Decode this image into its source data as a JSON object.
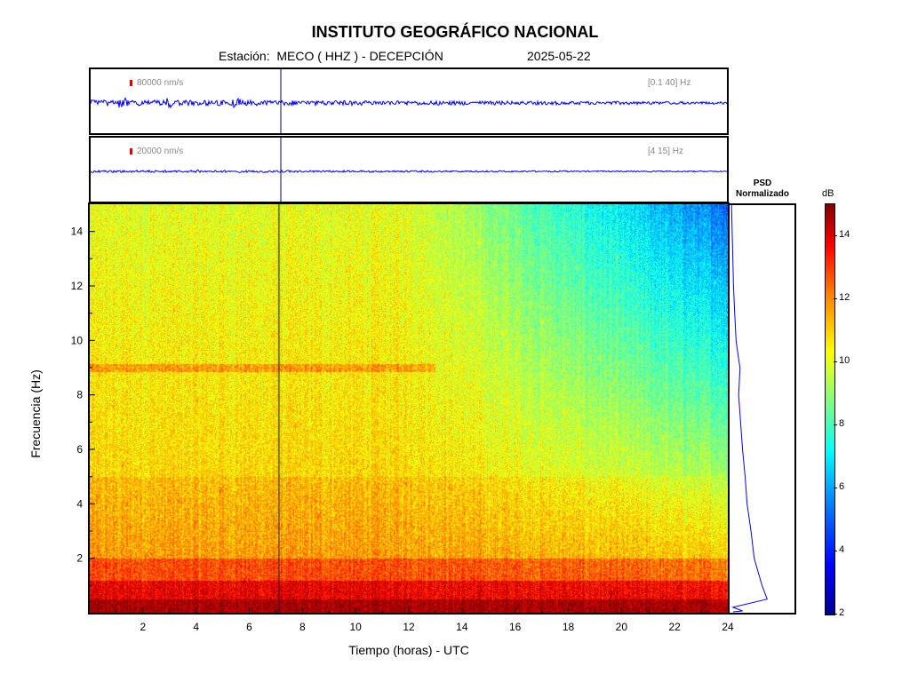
{
  "header": {
    "title": "INSTITUTO GEOGRÁFICO NACIONAL",
    "subtitle": "Estación:  MECO ( HHZ ) - DECEPCIÓN",
    "date": "2025-05-22"
  },
  "traces": [
    {
      "scale_label": "80000 nm/s",
      "band_label": "[0.1 40] Hz",
      "trace_color": "#0000ff"
    },
    {
      "scale_label": "20000 nm/s",
      "band_label": "[4 15] Hz",
      "trace_color": "#0000ff"
    }
  ],
  "psd": {
    "title_line1": "PSD",
    "title_line2": "Normalizado"
  },
  "colorbar": {
    "unit": "dB",
    "ticks": [
      2,
      4,
      6,
      8,
      10,
      12,
      14
    ],
    "range": [
      2,
      15
    ]
  },
  "chart_data": {
    "type": "heatmap",
    "title": "INSTITUTO GEOGRÁFICO NACIONAL",
    "xlabel": "Tiempo (horas) - UTC",
    "ylabel": "Frecuencia  (Hz)",
    "xlim": [
      0,
      24
    ],
    "ylim": [
      0,
      15
    ],
    "xticks": [
      2,
      4,
      6,
      8,
      10,
      12,
      14,
      16,
      18,
      20,
      22,
      24
    ],
    "yticks": [
      2,
      4,
      6,
      8,
      10,
      12,
      14
    ],
    "marker_time_hours": 7.1,
    "colormap": "jet",
    "psd_profile": {
      "freq_hz": [
        0.2,
        0.5,
        1,
        2,
        3,
        4,
        5,
        6,
        7,
        8,
        9,
        10,
        11,
        12,
        13,
        14,
        15
      ],
      "normalized": [
        0.05,
        0.58,
        0.5,
        0.38,
        0.33,
        0.27,
        0.24,
        0.2,
        0.17,
        0.14,
        0.16,
        0.1,
        0.08,
        0.06,
        0.05,
        0.04,
        0.03
      ]
    }
  }
}
